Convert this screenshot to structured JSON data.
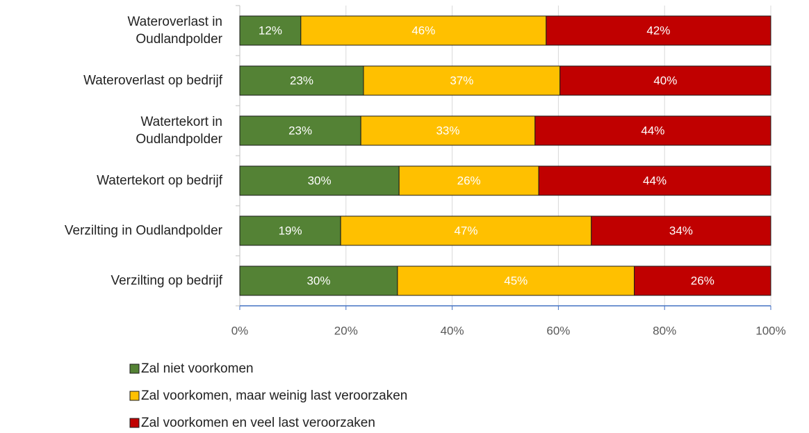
{
  "chart_data": {
    "type": "stacked-bar-horizontal",
    "categories": [
      "Wateroverlast in\nOudlandpolder",
      "Wateroverlast op bedrijf",
      "Watertekort in\nOudlandpolder",
      "Watertekort op bedrijf",
      "Verzilting in Oudlandpolder",
      "Verzilting op bedrijf"
    ],
    "series": [
      {
        "name": "Zal niet voorkomen",
        "color": "#548235",
        "values": [
          11.5,
          23.3,
          22.8,
          30.0,
          19.0,
          29.7
        ],
        "value_labels": [
          "12%",
          "23%",
          "23%",
          "30%",
          "19%",
          "30%"
        ]
      },
      {
        "name": "Zal voorkomen, maar weinig last veroorzaken",
        "color": "#ffc000",
        "values": [
          46.2,
          37.0,
          32.8,
          26.3,
          47.2,
          44.6
        ],
        "value_labels": [
          "46%",
          "37%",
          "33%",
          "26%",
          "47%",
          "45%"
        ]
      },
      {
        "name": "Zal voorkomen en veel last veroorzaken",
        "color": "#c00000",
        "values": [
          42.3,
          39.7,
          44.4,
          43.7,
          33.8,
          25.7
        ],
        "value_labels": [
          "42%",
          "40%",
          "44%",
          "44%",
          "34%",
          "26%"
        ]
      }
    ],
    "xlim": [
      0,
      100
    ],
    "xticks": [
      {
        "value": 0,
        "label": "0%"
      },
      {
        "value": 20,
        "label": "20%"
      },
      {
        "value": 40,
        "label": "40%"
      },
      {
        "value": 60,
        "label": "60%"
      },
      {
        "value": 80,
        "label": "80%"
      },
      {
        "value": 100,
        "label": "100%"
      }
    ],
    "grid": true,
    "legend": "bottom"
  }
}
